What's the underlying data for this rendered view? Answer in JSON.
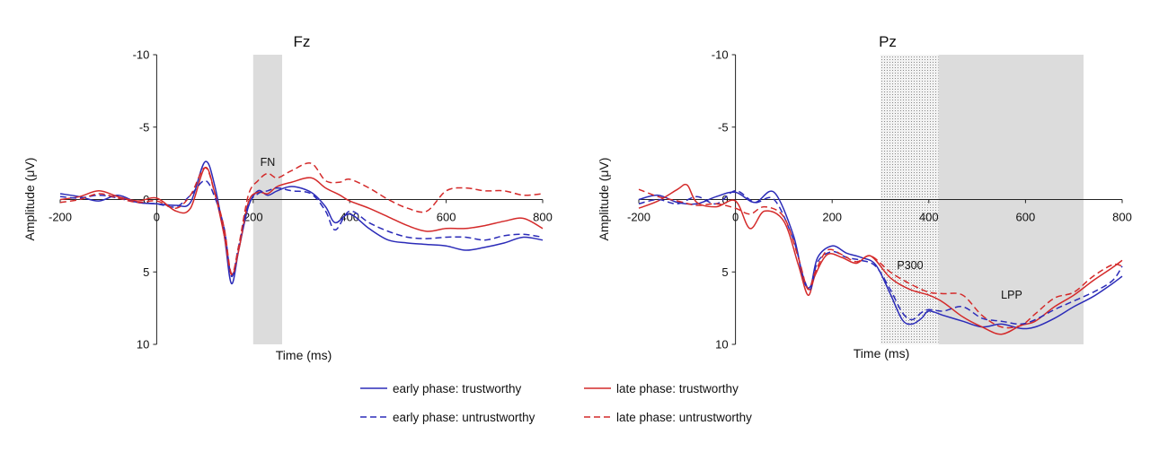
{
  "legend": [
    {
      "label": "early phase: trustworthy",
      "color": "#2b2bb8",
      "dash": "solid"
    },
    {
      "label": "late phase: trustworthy",
      "color": "#d42a2a",
      "dash": "solid"
    },
    {
      "label": "early phase: untrustworthy",
      "color": "#2b2bb8",
      "dash": "dashed"
    },
    {
      "label": "late phase: untrustworthy",
      "color": "#d42a2a",
      "dash": "dashed"
    }
  ],
  "chart_data": [
    {
      "type": "line",
      "title": "Fz",
      "xlabel": "Time (ms)",
      "ylabel": "Amplitude (μV)",
      "xlim": [
        -200,
        800
      ],
      "ylim": [
        10,
        -10
      ],
      "y_inverted": true,
      "xticks": [
        "-200",
        "0",
        "200",
        "400",
        "600",
        "800"
      ],
      "yticks": [
        "-10",
        "-5",
        "0",
        "5",
        "10"
      ],
      "regions": [
        {
          "label": "FN",
          "x0": 200,
          "x1": 260,
          "style": "shaded"
        }
      ],
      "series": [
        {
          "name": "early phase: trustworthy",
          "color": "#2b2bb8",
          "dash": "solid",
          "x": [
            -200,
            -160,
            -120,
            -80,
            -40,
            0,
            40,
            70,
            100,
            120,
            140,
            155,
            170,
            190,
            210,
            230,
            250,
            280,
            320,
            350,
            370,
            400,
            440,
            480,
            520,
            560,
            600,
            640,
            680,
            720,
            760,
            800
          ],
          "y": [
            -0.4,
            -0.2,
            0.1,
            -0.3,
            0.2,
            0.3,
            0.4,
            0.2,
            -2.6,
            -1.0,
            2.5,
            5.8,
            3.5,
            0.5,
            -0.6,
            -0.3,
            -0.6,
            -0.9,
            -0.5,
            0.5,
            1.6,
            1.0,
            2.0,
            2.8,
            3.0,
            3.1,
            3.2,
            3.5,
            3.3,
            3.0,
            2.6,
            2.8
          ]
        },
        {
          "name": "late phase: trustworthy",
          "color": "#d42a2a",
          "dash": "solid",
          "x": [
            -200,
            -160,
            -120,
            -80,
            -40,
            0,
            40,
            70,
            100,
            120,
            140,
            155,
            170,
            190,
            210,
            230,
            250,
            280,
            320,
            350,
            380,
            400,
            440,
            480,
            520,
            560,
            600,
            640,
            680,
            720,
            760,
            800
          ],
          "y": [
            0.0,
            -0.2,
            -0.6,
            -0.2,
            0.1,
            -0.1,
            0.8,
            0.6,
            -2.2,
            -0.5,
            2.5,
            5.2,
            3.5,
            0.2,
            -0.5,
            -0.4,
            -0.9,
            -1.2,
            -1.5,
            -0.8,
            -0.3,
            0.1,
            0.6,
            1.2,
            1.8,
            2.2,
            2.0,
            2.0,
            1.8,
            1.5,
            1.3,
            2.0
          ]
        },
        {
          "name": "early phase: untrustworthy",
          "color": "#2b2bb8",
          "dash": "dashed",
          "x": [
            -200,
            -160,
            -120,
            -80,
            -40,
            0,
            40,
            70,
            100,
            120,
            140,
            155,
            170,
            190,
            210,
            230,
            250,
            280,
            320,
            350,
            370,
            400,
            440,
            480,
            520,
            560,
            600,
            640,
            680,
            720,
            760,
            800
          ],
          "y": [
            -0.2,
            -0.1,
            -0.3,
            -0.1,
            0.2,
            0.3,
            0.5,
            -0.3,
            -1.3,
            -0.2,
            2.0,
            5.3,
            3.2,
            0.4,
            -0.4,
            -0.6,
            -0.8,
            -0.6,
            -0.4,
            0.8,
            2.1,
            0.8,
            1.6,
            2.2,
            2.6,
            2.7,
            2.6,
            2.6,
            2.8,
            2.5,
            2.4,
            2.6
          ]
        },
        {
          "name": "late phase: untrustworthy",
          "color": "#d42a2a",
          "dash": "dashed",
          "x": [
            -200,
            -160,
            -120,
            -80,
            -40,
            0,
            40,
            70,
            100,
            120,
            140,
            155,
            170,
            190,
            210,
            230,
            250,
            280,
            320,
            350,
            380,
            400,
            440,
            480,
            520,
            560,
            600,
            640,
            680,
            720,
            760,
            800
          ],
          "y": [
            0.2,
            0.0,
            -0.4,
            -0.1,
            0.2,
            0.1,
            0.6,
            -0.3,
            -2.2,
            -0.5,
            2.0,
            5.1,
            3.2,
            -0.3,
            -1.3,
            -1.8,
            -1.5,
            -2.0,
            -2.5,
            -1.3,
            -1.2,
            -1.4,
            -0.8,
            0.0,
            0.6,
            0.8,
            -0.6,
            -0.8,
            -0.6,
            -0.6,
            -0.3,
            -0.4
          ]
        }
      ]
    },
    {
      "type": "line",
      "title": "Pz",
      "xlabel": "Time (ms)",
      "ylabel": "Amplitude (μV)",
      "xlim": [
        -200,
        800
      ],
      "ylim": [
        10,
        -10
      ],
      "y_inverted": true,
      "xticks": [
        "-200",
        "0",
        "200",
        "400",
        "600",
        "800"
      ],
      "yticks": [
        "-10",
        "-5",
        "0",
        "5",
        "10"
      ],
      "regions": [
        {
          "label": "P300",
          "x0": 300,
          "x1": 420,
          "style": "dotted"
        },
        {
          "label": "LPP",
          "x0": 420,
          "x1": 720,
          "style": "shaded"
        }
      ],
      "series": [
        {
          "name": "early phase: trustworthy",
          "color": "#2b2bb8",
          "dash": "solid",
          "x": [
            -200,
            -160,
            -120,
            -80,
            -40,
            0,
            40,
            80,
            120,
            140,
            155,
            170,
            200,
            230,
            260,
            290,
            320,
            345,
            365,
            385,
            400,
            430,
            470,
            510,
            550,
            590,
            620,
            660,
            700,
            740,
            780,
            800
          ],
          "y": [
            0.0,
            -0.3,
            0.2,
            0.3,
            -0.2,
            -0.5,
            0.2,
            -0.5,
            2.5,
            5.5,
            6.0,
            4.0,
            3.2,
            3.7,
            4.0,
            4.5,
            6.5,
            8.3,
            8.6,
            8.2,
            7.7,
            8.0,
            8.4,
            8.8,
            8.6,
            8.9,
            8.8,
            8.2,
            7.4,
            6.7,
            5.8,
            5.3
          ]
        },
        {
          "name": "late phase: trustworthy",
          "color": "#d42a2a",
          "dash": "solid",
          "x": [
            -200,
            -160,
            -120,
            -100,
            -80,
            -40,
            0,
            30,
            60,
            100,
            130,
            150,
            165,
            190,
            220,
            250,
            280,
            320,
            360,
            400,
            430,
            470,
            510,
            550,
            590,
            620,
            660,
            700,
            740,
            780,
            800
          ],
          "y": [
            0.6,
            0.1,
            -0.7,
            -1.0,
            0.2,
            0.5,
            0.1,
            2.0,
            0.8,
            1.5,
            4.5,
            6.6,
            5.2,
            3.8,
            4.0,
            4.4,
            3.9,
            5.4,
            6.2,
            6.6,
            7.1,
            8.1,
            8.8,
            9.3,
            8.7,
            8.4,
            7.4,
            6.6,
            5.6,
            4.7,
            4.2
          ]
        },
        {
          "name": "early phase: untrustworthy",
          "color": "#2b2bb8",
          "dash": "dashed",
          "x": [
            -200,
            -160,
            -120,
            -80,
            -40,
            0,
            40,
            80,
            120,
            140,
            155,
            170,
            200,
            230,
            260,
            290,
            320,
            345,
            365,
            385,
            400,
            430,
            470,
            510,
            550,
            590,
            620,
            660,
            700,
            740,
            780,
            800
          ],
          "y": [
            0.3,
            0.0,
            0.3,
            -0.2,
            0.3,
            -0.6,
            0.2,
            0.0,
            2.8,
            5.3,
            6.2,
            4.3,
            3.6,
            4.0,
            4.2,
            4.6,
            6.2,
            7.8,
            8.3,
            7.8,
            7.6,
            7.7,
            7.4,
            8.2,
            8.4,
            8.6,
            8.3,
            7.6,
            7.0,
            6.4,
            5.6,
            4.6
          ]
        },
        {
          "name": "late phase: untrustworthy",
          "color": "#d42a2a",
          "dash": "dashed",
          "x": [
            -200,
            -160,
            -120,
            -80,
            -40,
            0,
            30,
            60,
            100,
            130,
            150,
            165,
            190,
            220,
            250,
            280,
            320,
            360,
            400,
            430,
            470,
            510,
            550,
            590,
            620,
            660,
            700,
            740,
            780,
            800
          ],
          "y": [
            -0.7,
            -0.2,
            0.1,
            0.4,
            0.3,
            0.6,
            1.0,
            0.5,
            1.2,
            4.0,
            6.2,
            5.0,
            3.5,
            3.8,
            4.3,
            3.9,
            5.0,
            5.8,
            6.4,
            6.5,
            6.6,
            8.0,
            8.8,
            8.7,
            7.9,
            6.8,
            6.4,
            5.3,
            4.5,
            4.6
          ]
        }
      ]
    }
  ]
}
